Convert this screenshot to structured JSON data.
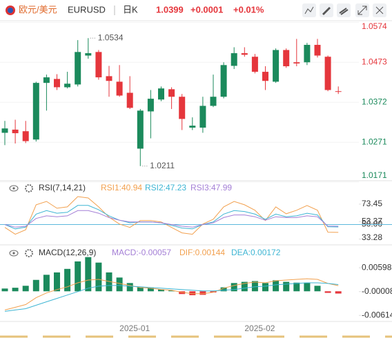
{
  "header": {
    "pair": "欧元/美元",
    "symbol": "EURUSD",
    "period": "日K",
    "price": "1.0399",
    "change": "+0.0001",
    "change_pct": "+0.01%"
  },
  "chart_data": [
    {
      "type": "candlestick",
      "categories": [
        null,
        null,
        null,
        null,
        null,
        null,
        null,
        null,
        null,
        null,
        null,
        null,
        "2025-01",
        null,
        null,
        null,
        null,
        null,
        null,
        null,
        null,
        null,
        null,
        null,
        "2025-02",
        null,
        null,
        null,
        null,
        null,
        null,
        null,
        null
      ],
      "open": [
        1.0295,
        1.0303,
        1.0299,
        1.0278,
        1.0421,
        1.0431,
        1.041,
        1.0417,
        1.049,
        1.0499,
        1.0438,
        1.0424,
        1.0396,
        1.0255,
        1.0349,
        1.0379,
        1.0405,
        1.0386,
        1.0308,
        1.0308,
        1.0363,
        1.0386,
        1.0464,
        1.0496,
        1.0487,
        1.0449,
        1.0424,
        1.0504,
        1.0473,
        1.0473,
        1.0517,
        1.0487,
        1.04
      ],
      "high": [
        1.0325,
        1.0328,
        1.0325,
        1.0424,
        1.0442,
        1.0443,
        1.0449,
        1.0529,
        1.0534,
        1.0504,
        1.0464,
        1.0466,
        1.0438,
        1.0355,
        1.0403,
        1.0412,
        1.041,
        1.0393,
        1.0334,
        1.0386,
        1.0442,
        1.0473,
        1.0511,
        1.0511,
        1.0494,
        1.0463,
        1.0508,
        1.0508,
        1.0532,
        1.0522,
        1.0532,
        1.049,
        1.0412
      ],
      "low": [
        1.0264,
        1.0268,
        1.0269,
        1.0273,
        1.0351,
        1.0403,
        1.0407,
        1.0412,
        1.0482,
        1.0429,
        1.0386,
        1.0386,
        1.0355,
        1.0211,
        1.0281,
        1.0375,
        1.0355,
        1.0302,
        1.0302,
        1.0295,
        1.036,
        1.0382,
        1.0456,
        1.0487,
        1.0445,
        1.0403,
        1.0421,
        1.0459,
        1.0463,
        1.0466,
        1.0485,
        1.04,
        1.0393
      ],
      "close": [
        1.0306,
        1.0294,
        1.0274,
        1.0421,
        1.0435,
        1.041,
        1.0419,
        1.0499,
        1.0496,
        1.0435,
        1.0426,
        1.0389,
        1.0358,
        1.0351,
        1.0381,
        1.0407,
        1.0386,
        1.033,
        1.0313,
        1.0363,
        1.0386,
        1.0466,
        1.0496,
        1.0492,
        1.0449,
        1.0426,
        1.0504,
        1.0463,
        1.047,
        1.0517,
        1.049,
        1.0403,
        1.0399
      ],
      "up_color": "#1b8a5c",
      "down_color": "#e5363c",
      "ylim": [
        1.0174,
        1.0578
      ],
      "yticks": [
        1.0171,
        1.0271,
        1.0372,
        1.0473,
        1.0574
      ],
      "grid": true
    },
    {
      "type": "line",
      "title": "RSI(7,14,21)",
      "series": [
        {
          "name": "RSI1:40.94",
          "color": "#f2a04e",
          "values": [
            46.7,
            38.8,
            44,
            72.7,
            76.6,
            68.7,
            70.3,
            82.1,
            80.5,
            70.3,
            58.5,
            50.6,
            46.7,
            54.5,
            54.5,
            53,
            46.7,
            40.4,
            38.8,
            50.6,
            56.1,
            70.3,
            76.6,
            72.7,
            66.4,
            54.5,
            70.3,
            62.4,
            66.4,
            71.9,
            66.4,
            41.2,
            40.94
          ]
        },
        {
          "name": "RSI2:47.23",
          "color": "#3db5d3",
          "values": [
            50,
            45,
            47,
            62,
            66,
            63,
            64,
            72,
            72,
            67,
            60,
            55,
            52,
            53,
            53,
            52,
            49,
            46,
            45,
            50,
            53,
            62,
            66,
            65,
            62,
            56,
            62,
            59,
            60,
            63,
            61,
            47.5,
            47.23
          ]
        },
        {
          "name": "RSI3:47.99",
          "color": "#a47fd6",
          "values": [
            50,
            47,
            48,
            57,
            60,
            59,
            60,
            66,
            66,
            63,
            58,
            55,
            53,
            53,
            53,
            52,
            50,
            48,
            47,
            50,
            52,
            58,
            61,
            61,
            59,
            55,
            59,
            58,
            58,
            60,
            59,
            48.2,
            47.99
          ]
        }
      ],
      "ylim": [
        29,
        94
      ],
      "yticks": [
        73.45,
        53.37,
        {
          "value": 50,
          "label": "50.00"
        },
        33.28
      ],
      "hline": 50,
      "hline_color": "#5bb8dd"
    },
    {
      "type": "bar",
      "title": "MACD(12,26,9)",
      "name": "MACD:-0.00057",
      "label_color": "#a47fd6",
      "values": [
        0.0007,
        0.0009,
        0.0014,
        0.0029,
        0.0042,
        0.0048,
        0.0057,
        0.0076,
        0.0087,
        0.0073,
        0.0048,
        0.0035,
        0.0021,
        0.001,
        0.0009,
        0.0005,
        0.0002,
        -0.0007,
        -0.001,
        -0.0009,
        -0.0003,
        0.001,
        0.0021,
        0.0024,
        0.0026,
        0.0021,
        0.0028,
        0.0024,
        0.0022,
        0.0022,
        0.0014,
        -0.0004,
        -0.00057
      ],
      "colors": {
        "up": "#1b8a5c",
        "down": "#e5363c"
      },
      "series": [
        {
          "name": "DIF:0.00144",
          "color": "#f2a04e",
          "values": [
            -0.00476,
            -0.00407,
            -0.00338,
            -0.00164,
            -0.00043,
            0.00043,
            0.00113,
            0.00216,
            0.00286,
            0.00303,
            0.00251,
            0.00199,
            0.00147,
            0.00095,
            0.00078,
            0.00043,
            0.00026,
            -0.00026,
            -0.0006,
            -0.0006,
            -0.00026,
            0.00078,
            0.00147,
            0.00199,
            0.00234,
            0.00216,
            0.00268,
            0.00286,
            0.00303,
            0.0032,
            0.00303,
            0.00199,
            0.00144
          ]
        },
        {
          "name": "DEA:0.00172",
          "color": "#3db5d3",
          "values": [
            -0.00511,
            -0.00476,
            -0.00442,
            -0.00355,
            -0.00268,
            -0.00182,
            -0.00095,
            -9e-05,
            0.00078,
            0.0013,
            0.00147,
            0.00147,
            0.0013,
            0.00113,
            0.00095,
            0.00078,
            0.00061,
            0.00043,
            0.00026,
            9e-05,
            9e-05,
            0.00026,
            0.00043,
            0.00078,
            0.00113,
            0.0013,
            0.00164,
            0.00182,
            0.00199,
            0.00216,
            0.00216,
            0.00199,
            0.00172
          ]
        }
      ],
      "ylim": [
        -0.0075,
        0.0083
      ],
      "yticks": [
        0.00598,
        -8e-05,
        -0.00614
      ]
    }
  ]
}
